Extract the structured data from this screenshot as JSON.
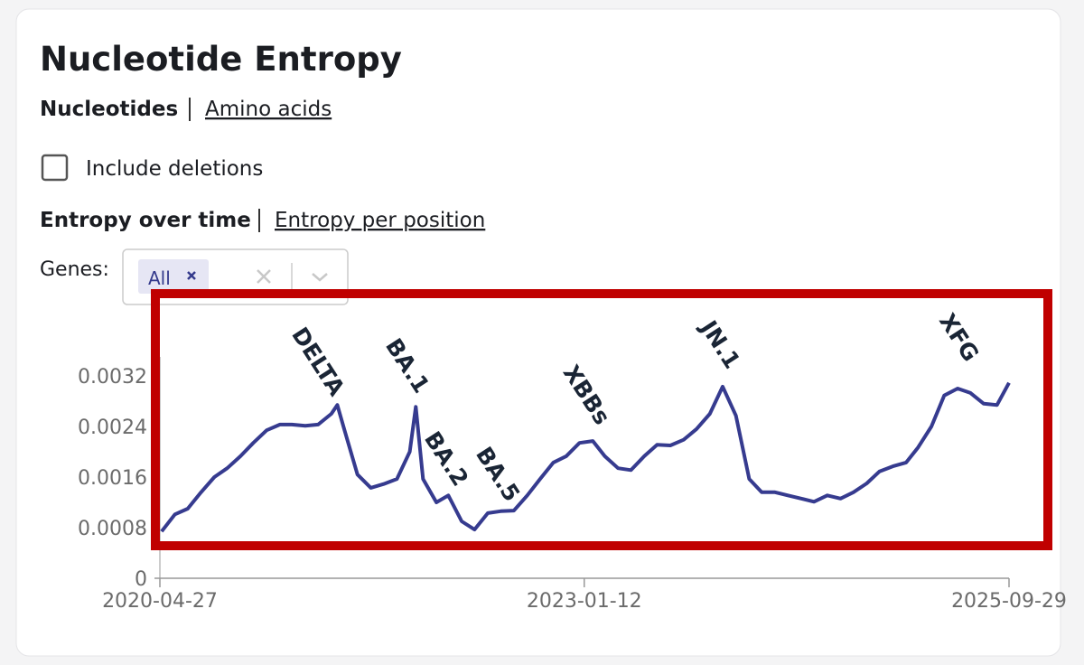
{
  "header": {
    "title": "Nucleotide Entropy"
  },
  "tabs": {
    "items": [
      "Nucleotides",
      "Amino acids"
    ]
  },
  "checkbox": {
    "label": "Include deletions"
  },
  "views": {
    "items": [
      "Entropy over time",
      "Entropy per position"
    ]
  },
  "genes": {
    "label": "Genes:",
    "selected": [
      "All"
    ]
  },
  "chart_data": {
    "type": "line",
    "color": "#363b8f",
    "x": [
      "2020-05-01",
      "2020-06-01",
      "2020-07-01",
      "2020-08-01",
      "2020-09-01",
      "2020-10-01",
      "2020-11-01",
      "2020-12-01",
      "2021-01-01",
      "2021-02-01",
      "2021-03-01",
      "2021-04-01",
      "2021-05-01",
      "2021-06-01",
      "2021-06-15",
      "2021-07-01",
      "2021-08-01",
      "2021-09-01",
      "2021-10-01",
      "2021-11-01",
      "2021-12-01",
      "2021-12-15",
      "2022-01-01",
      "2022-02-01",
      "2022-03-01",
      "2022-04-01",
      "2022-05-01",
      "2022-06-01",
      "2022-07-01",
      "2022-08-01",
      "2022-09-01",
      "2022-10-01",
      "2022-11-01",
      "2022-12-01",
      "2023-01-01",
      "2023-02-01",
      "2023-03-01",
      "2023-04-01",
      "2023-05-01",
      "2023-06-01",
      "2023-07-01",
      "2023-08-01",
      "2023-09-01",
      "2023-10-01",
      "2023-11-01",
      "2023-12-01",
      "2024-01-01",
      "2024-02-01",
      "2024-03-01",
      "2024-04-01",
      "2024-05-01",
      "2024-06-01",
      "2024-07-01",
      "2024-08-01",
      "2024-09-01",
      "2024-10-01",
      "2024-11-01",
      "2024-12-01",
      "2025-01-01",
      "2025-02-01",
      "2025-03-01",
      "2025-04-01",
      "2025-05-01",
      "2025-06-01",
      "2025-07-01",
      "2025-08-01",
      "2025-09-01",
      "2025-09-29"
    ],
    "values": [
      0.00074,
      0.00101,
      0.0011,
      0.00136,
      0.0016,
      0.00174,
      0.00193,
      0.00214,
      0.00234,
      0.00243,
      0.00243,
      0.00241,
      0.00243,
      0.0026,
      0.00274,
      0.00236,
      0.00164,
      0.00143,
      0.00149,
      0.00157,
      0.002,
      0.00271,
      0.00157,
      0.0012,
      0.00131,
      0.0009,
      0.00077,
      0.00103,
      0.00106,
      0.00107,
      0.00131,
      0.00157,
      0.00183,
      0.00193,
      0.00214,
      0.00217,
      0.00193,
      0.00174,
      0.00171,
      0.00193,
      0.00211,
      0.0021,
      0.00219,
      0.00236,
      0.0026,
      0.00303,
      0.00257,
      0.00157,
      0.00136,
      0.00136,
      0.00131,
      0.00126,
      0.00121,
      0.00131,
      0.00126,
      0.00136,
      0.0015,
      0.00169,
      0.00177,
      0.00183,
      0.00207,
      0.0024,
      0.00289,
      0.003,
      0.00293,
      0.00276,
      0.00274,
      0.00309
    ],
    "annotations": [
      "DELTA",
      "BA.1",
      "BA.2",
      "BA.5",
      "XBBs",
      "JN.1",
      "XFG"
    ],
    "xlim": [
      "2020-04-27",
      "2025-09-29"
    ],
    "xticks": [
      "2020-04-27",
      "2023-01-12",
      "2025-09-29"
    ],
    "ylim": [
      0,
      0.0032
    ],
    "yticks": [
      0,
      0.0008,
      0.0016,
      0.0024,
      0.0032
    ]
  }
}
